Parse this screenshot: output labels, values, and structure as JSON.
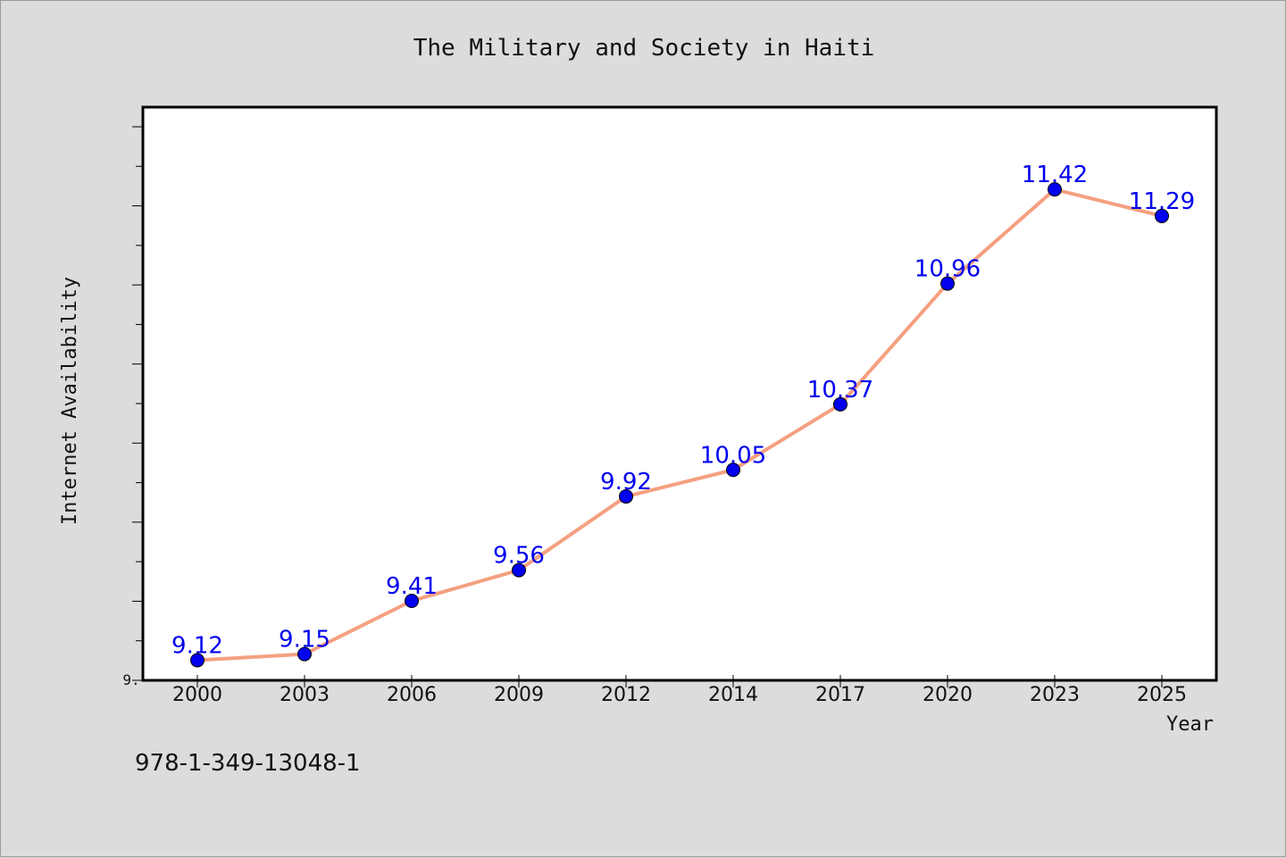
{
  "chart_data": {
    "type": "line",
    "title": "The Military and Society in Haiti",
    "xlabel": "Year",
    "ylabel": "Internet Availability",
    "categories": [
      "2000",
      "2003",
      "2006",
      "2009",
      "2012",
      "2014",
      "2017",
      "2020",
      "2023",
      "2025"
    ],
    "values": [
      9.12,
      9.15,
      9.41,
      9.56,
      9.92,
      10.05,
      10.37,
      10.96,
      11.42,
      11.29
    ],
    "data_labels": [
      "9.12",
      "9.15",
      "9.41",
      "9.56",
      "9.92",
      "10.05",
      "10.37",
      "10.96",
      "11.42",
      "11.29"
    ],
    "y_tick_label": "9.",
    "ylim": [
      9.0,
      11.8
    ],
    "grid": false,
    "legend": "none",
    "colors": {
      "line": "#f4a080",
      "marker": "#0000ee",
      "label": "#0000ee",
      "plot_bg": "#ffffff",
      "page_bg": "#dcdcdc"
    }
  },
  "footer_text": "978-1-349-13048-1"
}
